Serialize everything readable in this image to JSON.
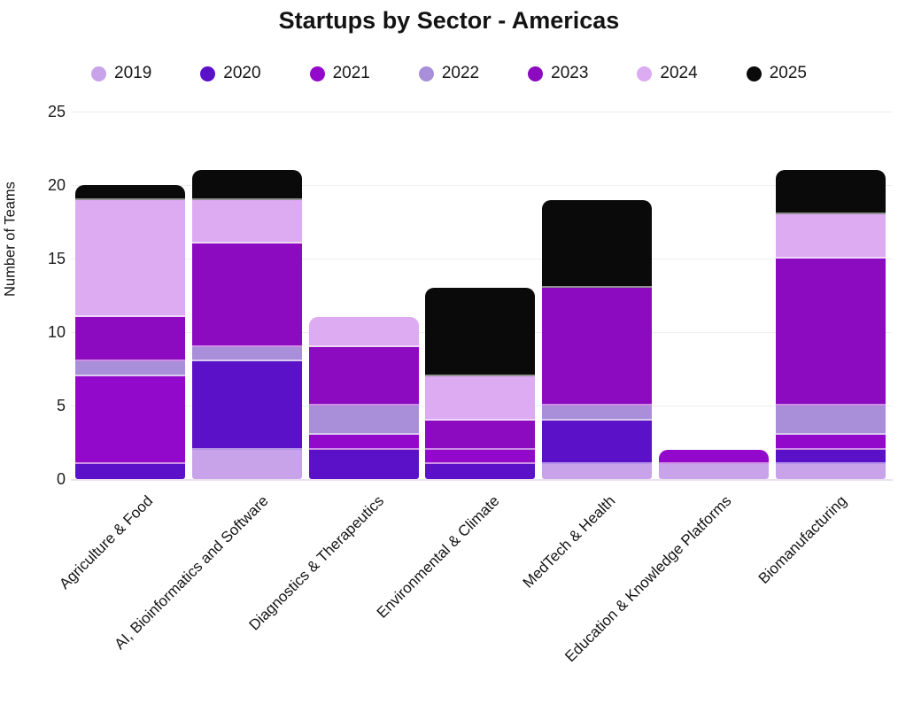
{
  "chart_data": {
    "type": "bar",
    "stacked": true,
    "title": "Startups by Sector - Americas",
    "ylabel": "Number of Teams",
    "xlabel": "",
    "ylim": [
      0,
      25
    ],
    "yticks": [
      0,
      5,
      10,
      15,
      20,
      25
    ],
    "grid": true,
    "legend_position": "top",
    "categories": [
      "Agriculture & Food",
      "AI, Bioinformatics and Software",
      "Diagnostics & Therapeutics",
      "Environmental & Climate",
      "MedTech & Health",
      "Education & Knowledge Platforms",
      "Biomanufacturing"
    ],
    "series": [
      {
        "name": "2019",
        "color": "#c9a3ea",
        "values": [
          0,
          2,
          0,
          0,
          1,
          1,
          1
        ]
      },
      {
        "name": "2020",
        "color": "#5a11c8",
        "values": [
          1,
          6,
          2,
          1,
          3,
          0,
          1
        ]
      },
      {
        "name": "2021",
        "color": "#9309cb",
        "values": [
          6,
          0,
          1,
          1,
          0,
          1,
          1
        ]
      },
      {
        "name": "2022",
        "color": "#a98fd9",
        "values": [
          1,
          1,
          2,
          0,
          1,
          0,
          2
        ]
      },
      {
        "name": "2023",
        "color": "#8c0ac0",
        "values": [
          3,
          7,
          4,
          2,
          8,
          0,
          10
        ]
      },
      {
        "name": "2024",
        "color": "#dcabf2",
        "values": [
          8,
          3,
          2,
          3,
          0,
          0,
          3
        ]
      },
      {
        "name": "2025",
        "color": "#0a0a0a",
        "values": [
          1,
          2,
          0,
          6,
          6,
          0,
          3
        ]
      }
    ],
    "totals": [
      20,
      21,
      11,
      13,
      19,
      2,
      21
    ]
  }
}
